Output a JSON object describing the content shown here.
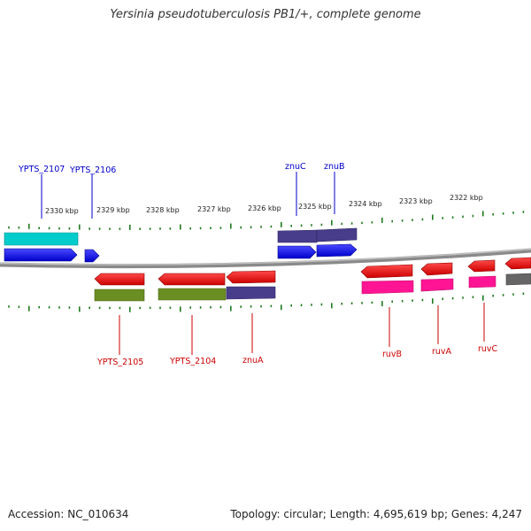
{
  "header": {
    "title": "Yersinia pseudotuberculosis PB1/+, complete genome"
  },
  "footer": {
    "accession": "Accession: NC_010634",
    "stats": "Topology: circular; Length: 4,695,619 bp; Genes: 4,247"
  },
  "map": {
    "tick_labels": [
      "2330 kbp",
      "2329 kbp",
      "2328 kbp",
      "2327 kbp",
      "2326 kbp",
      "2325 kbp",
      "2324 kbp",
      "2323 kbp",
      "2322 kbp"
    ],
    "colors": {
      "backbone": "#8a8a8a",
      "ticks": "#1f7a1f",
      "forward_label": "#0000cc",
      "reverse_label": "#cc0000",
      "cds_forward": "#0000ff",
      "cds_reverse": "#ff0000",
      "rna": "#00cccc",
      "olive": "#6b8e23",
      "slate": "#483d8b",
      "magenta": "#ff1493",
      "grey": "#666666"
    },
    "labels_above": [
      "YPTS_2107",
      "YPTS_2106",
      "znuC",
      "znuB"
    ],
    "labels_below": [
      "YPTS_2105",
      "YPTS_2104",
      "znuA",
      "ruvB",
      "ruvA",
      "ruvC"
    ]
  }
}
